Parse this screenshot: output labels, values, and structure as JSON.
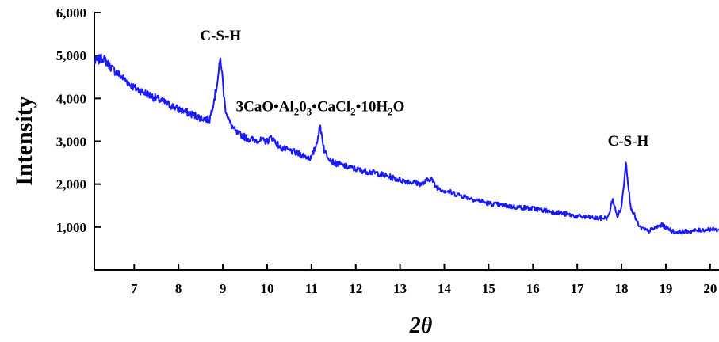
{
  "chart_data": {
    "type": "line",
    "title": "",
    "xlabel": "2θ",
    "ylabel": "Intensity",
    "xlim": [
      6.1,
      20.2
    ],
    "ylim": [
      0,
      6000
    ],
    "x_ticks": [
      7,
      8,
      9,
      10,
      11,
      12,
      13,
      14,
      15,
      16,
      17,
      18,
      19,
      20
    ],
    "x_tick_labels": [
      "7",
      "8",
      "9",
      "10",
      "11",
      "12",
      "13",
      "14",
      "15",
      "16",
      "17",
      "18",
      "19",
      "20"
    ],
    "y_ticks": [
      1000,
      2000,
      3000,
      4000,
      5000,
      6000
    ],
    "y_tick_labels": [
      "1,000",
      "2,000",
      "3,000",
      "4,000",
      "5,000",
      "6,000"
    ],
    "grid": false,
    "line_color": "#1a1aff",
    "series": [
      {
        "x": [
          6.1,
          6.3,
          6.5,
          7.0,
          7.5,
          8.0,
          8.5,
          8.7,
          8.85,
          8.95,
          9.05,
          9.15,
          9.3,
          9.6,
          10.0,
          10.1,
          10.3,
          10.6,
          11.0,
          11.1,
          11.2,
          11.3,
          11.5,
          12.0,
          12.5,
          13.0,
          13.5,
          13.7,
          13.8,
          14.0,
          14.5,
          15.0,
          15.5,
          16.0,
          16.5,
          17.0,
          17.5,
          17.7,
          17.8,
          17.9,
          18.0,
          18.1,
          18.2,
          18.4,
          18.6,
          18.9,
          19.2,
          19.5,
          20.0,
          20.2
        ],
        "y": [
          4850,
          4950,
          4700,
          4250,
          4000,
          3750,
          3550,
          3500,
          4200,
          4950,
          3800,
          3450,
          3200,
          3050,
          3000,
          3100,
          2850,
          2750,
          2600,
          2900,
          3350,
          2750,
          2500,
          2350,
          2250,
          2100,
          2000,
          2150,
          1950,
          1850,
          1700,
          1550,
          1480,
          1430,
          1350,
          1250,
          1200,
          1220,
          1650,
          1250,
          1450,
          2550,
          1500,
          1000,
          900,
          1050,
          880,
          900,
          950,
          930
        ]
      }
    ],
    "annotations": [
      {
        "text": "C-S-H",
        "x": 8.95,
        "y": 5350
      },
      {
        "text_parts": [
          "3CaO•Al",
          "2",
          "0",
          "3",
          "•CaCl",
          "2",
          "•10H",
          "2",
          "O"
        ],
        "x": 11.2,
        "y": 3700
      },
      {
        "text": "C-S-H",
        "x": 18.15,
        "y": 2900
      }
    ]
  }
}
